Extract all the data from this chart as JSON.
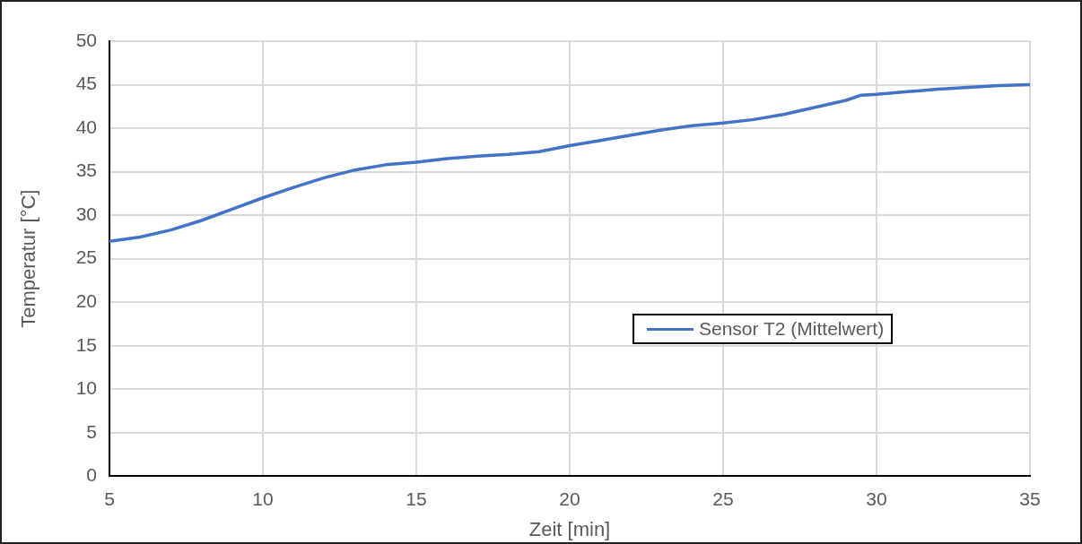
{
  "chart_data": {
    "type": "line",
    "xlabel": "Zeit [min]",
    "ylabel": "Temperatur [°C]",
    "xlim": [
      5,
      35
    ],
    "xticks": [
      5,
      10,
      15,
      20,
      25,
      30,
      35
    ],
    "ylim": [
      0,
      50
    ],
    "yticks": [
      0,
      5,
      10,
      15,
      20,
      25,
      30,
      35,
      40,
      45,
      50
    ],
    "grid": true,
    "legend": "right",
    "marker": "none",
    "line_style": "solid",
    "series": [
      {
        "name": "Sensor T2 (Mittelwert)",
        "color": "#4472c4",
        "x": [
          5,
          6,
          7,
          8,
          9,
          10,
          11,
          12,
          13,
          14,
          15,
          16,
          17,
          18,
          19,
          20,
          21,
          22,
          23,
          24,
          25,
          26,
          27,
          28,
          29,
          29.5,
          30,
          31,
          32,
          33,
          34,
          35
        ],
        "values": [
          27.0,
          27.5,
          28.3,
          29.4,
          30.7,
          32.0,
          33.2,
          34.3,
          35.2,
          35.8,
          36.1,
          36.5,
          36.8,
          37.0,
          37.3,
          38.0,
          38.6,
          39.2,
          39.8,
          40.3,
          40.6,
          41.0,
          41.6,
          42.4,
          43.2,
          43.8,
          43.9,
          44.2,
          44.5,
          44.7,
          44.9,
          45.0
        ]
      }
    ]
  }
}
